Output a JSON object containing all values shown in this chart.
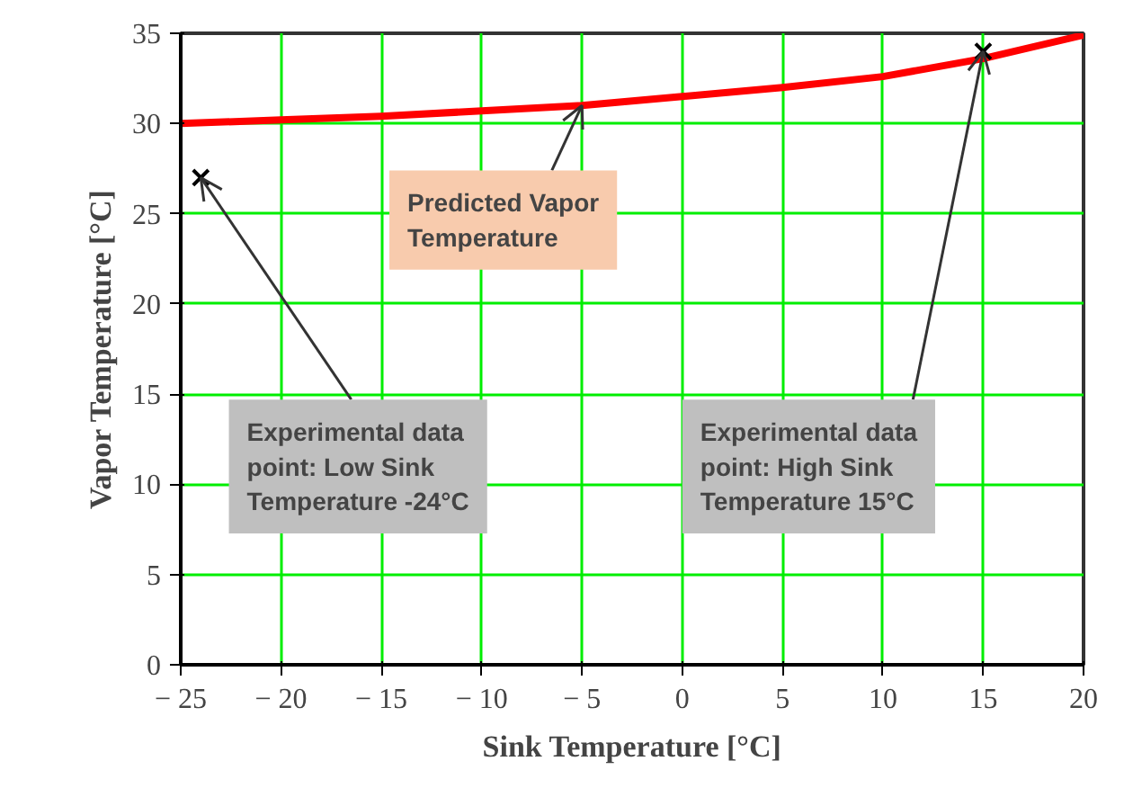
{
  "chart_data": {
    "type": "line",
    "xlabel": "Sink Temperature [°C]",
    "ylabel": "Vapor Temperature [°C]",
    "xlim": [
      -25,
      20
    ],
    "ylim": [
      0,
      35
    ],
    "xticks": [
      {
        "value": -25,
        "label": "− 25"
      },
      {
        "value": -20,
        "label": "− 20"
      },
      {
        "value": -15,
        "label": "− 15"
      },
      {
        "value": -10,
        "label": "− 10"
      },
      {
        "value": -5,
        "label": "− 5"
      },
      0,
      5,
      10,
      15,
      20
    ],
    "yticks": [
      0,
      5,
      10,
      15,
      20,
      25,
      30,
      35
    ],
    "grid": true,
    "series": [
      {
        "color": "#ff0000",
        "x": [
          -25,
          -20,
          -15,
          -10,
          -5,
          0,
          5,
          10,
          15,
          20
        ],
        "values": [
          30,
          30.2,
          30.4,
          30.7,
          31.0,
          31.5,
          32.0,
          32.6,
          33.6,
          34.9
        ],
        "marker": "none",
        "line_style": "solid"
      },
      {
        "type": "scatter",
        "color": "#000000",
        "x": [
          -24,
          15
        ],
        "values": [
          27,
          34
        ],
        "marker": "cross"
      }
    ],
    "annotations": [
      {
        "text": "Predicted Vapor Temperature",
        "x": -5,
        "y": 31
      },
      {
        "text": "Experimental data point: Low Sink Temperature -24°C",
        "x": -24,
        "y": 27
      },
      {
        "text": "Experimental data point: High Sink Temperature 15°C",
        "x": 15,
        "y": 34
      }
    ]
  }
}
